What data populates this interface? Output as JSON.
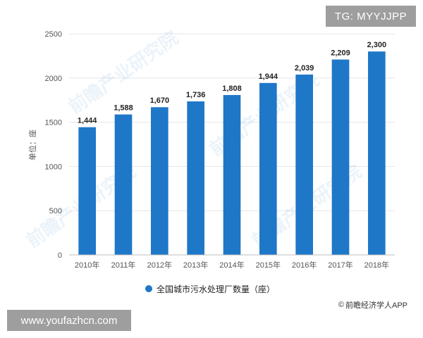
{
  "badges": {
    "top_right": "TG: MYYJJPP",
    "bottom_left": "www.youfazhcn.com"
  },
  "source": {
    "icon": "copyright-icon",
    "icon_glyph": "©",
    "text": "前瞻经济学人APP"
  },
  "watermark": "前瞻产业研究院",
  "colors": {
    "bar": "#1f77c8",
    "grid": "#e6e6e6",
    "axis_text": "#555555",
    "label": "#222222"
  },
  "chart_data": {
    "type": "bar",
    "categories": [
      "2010年",
      "2011年",
      "2012年",
      "2013年",
      "2014年",
      "2015年",
      "2016年",
      "2017年",
      "2018年"
    ],
    "series": [
      {
        "name": "全国城市污水处理厂数量（座）",
        "values": [
          1444,
          1588,
          1670,
          1736,
          1808,
          1944,
          2039,
          2209,
          2300
        ]
      }
    ],
    "data_labels": [
      "1,444",
      "1,588",
      "1,670",
      "1,736",
      "1,808",
      "1,944",
      "2,039",
      "2,209",
      "2,300"
    ],
    "ylabel": "单位：座",
    "xlabel": "",
    "ylim": [
      0,
      2500
    ],
    "yticks": [
      0,
      500,
      1000,
      1500,
      2000,
      2500
    ],
    "grid": true,
    "legend_position": "bottom"
  }
}
